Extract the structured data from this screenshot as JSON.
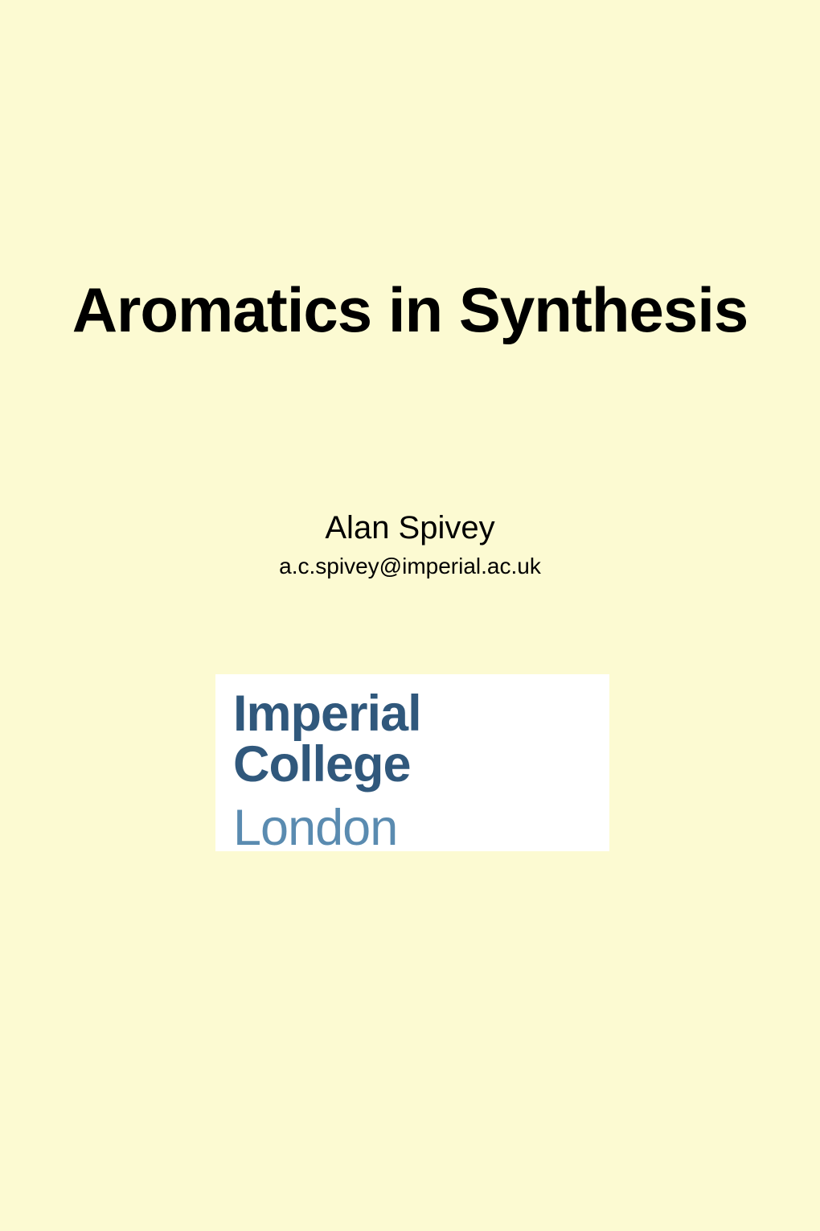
{
  "slide": {
    "title": "Aromatics in Synthesis",
    "author": "Alan Spivey",
    "email": "a.c.spivey@imperial.ac.uk",
    "logo": {
      "line1": "Imperial College",
      "line2": "London",
      "line1_color": "#30587c",
      "line2_color": "#5a8bb0",
      "background_color": "#ffffff"
    },
    "background_color": "#fcfad2",
    "title_fontsize": 78,
    "title_fontweight": "bold",
    "author_fontsize": 40,
    "email_fontsize": 28,
    "logo_fontsize": 63
  }
}
